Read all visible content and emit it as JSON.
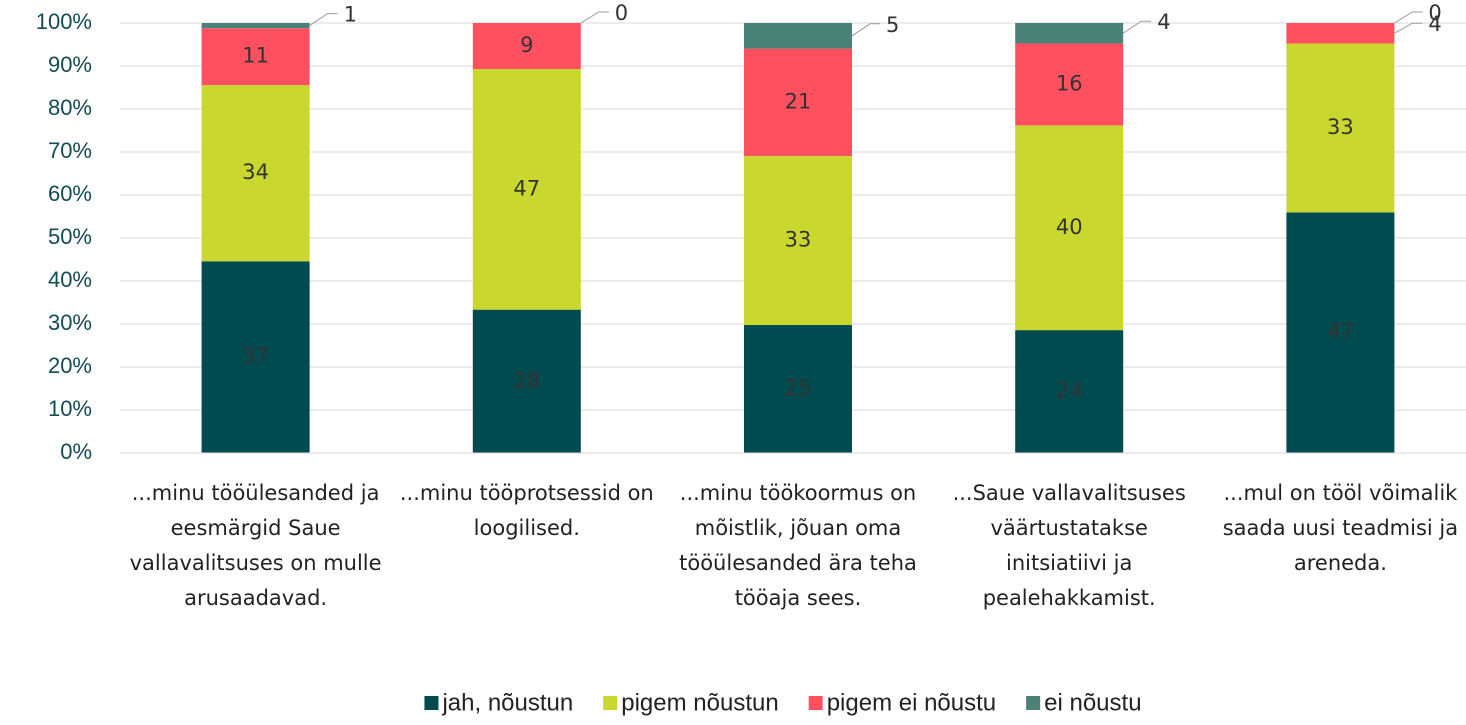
{
  "chart_data": {
    "type": "bar",
    "stacking": "percent",
    "categories": [
      "...minu tööülesanded ja eesmärgid Saue vallavalitsuses on mulle arusaadavad.",
      "...minu tööprotsessid on loogilised.",
      "...minu töökoormus on mõistlik, jõuan oma tööülesanded ära teha tööaja sees.",
      "...Saue vallavalitsuses väärtustatakse initsiatiivi ja pealehakkamist.",
      "...mul on tööl võimalik saada uusi teadmisi ja areneda."
    ],
    "series": [
      {
        "name": "jah, nõustun",
        "color": "#004b50",
        "values": [
          37,
          28,
          25,
          24,
          47
        ]
      },
      {
        "name": "pigem nõustun",
        "color": "#c9d72e",
        "values": [
          34,
          47,
          33,
          40,
          33
        ]
      },
      {
        "name": "pigem ei nõustu",
        "color": "#ff5060",
        "values": [
          11,
          9,
          21,
          16,
          4
        ]
      },
      {
        "name": "ei nõustu",
        "color": "#4b8278",
        "values": [
          1,
          0,
          5,
          4,
          0
        ]
      }
    ],
    "ylim": [
      0,
      100
    ],
    "yticks": [
      {
        "value": 0,
        "label": "0%"
      },
      {
        "value": 10,
        "label": "10%"
      },
      {
        "value": 20,
        "label": "20%"
      },
      {
        "value": 30,
        "label": "30%"
      },
      {
        "value": 40,
        "label": "40%"
      },
      {
        "value": 50,
        "label": "50%"
      },
      {
        "value": 60,
        "label": "60%"
      },
      {
        "value": 70,
        "label": "70%"
      },
      {
        "value": 80,
        "label": "80%"
      },
      {
        "value": 90,
        "label": "90%"
      },
      {
        "value": 100,
        "label": "100%"
      }
    ],
    "grid": true,
    "legend": "bottom"
  }
}
